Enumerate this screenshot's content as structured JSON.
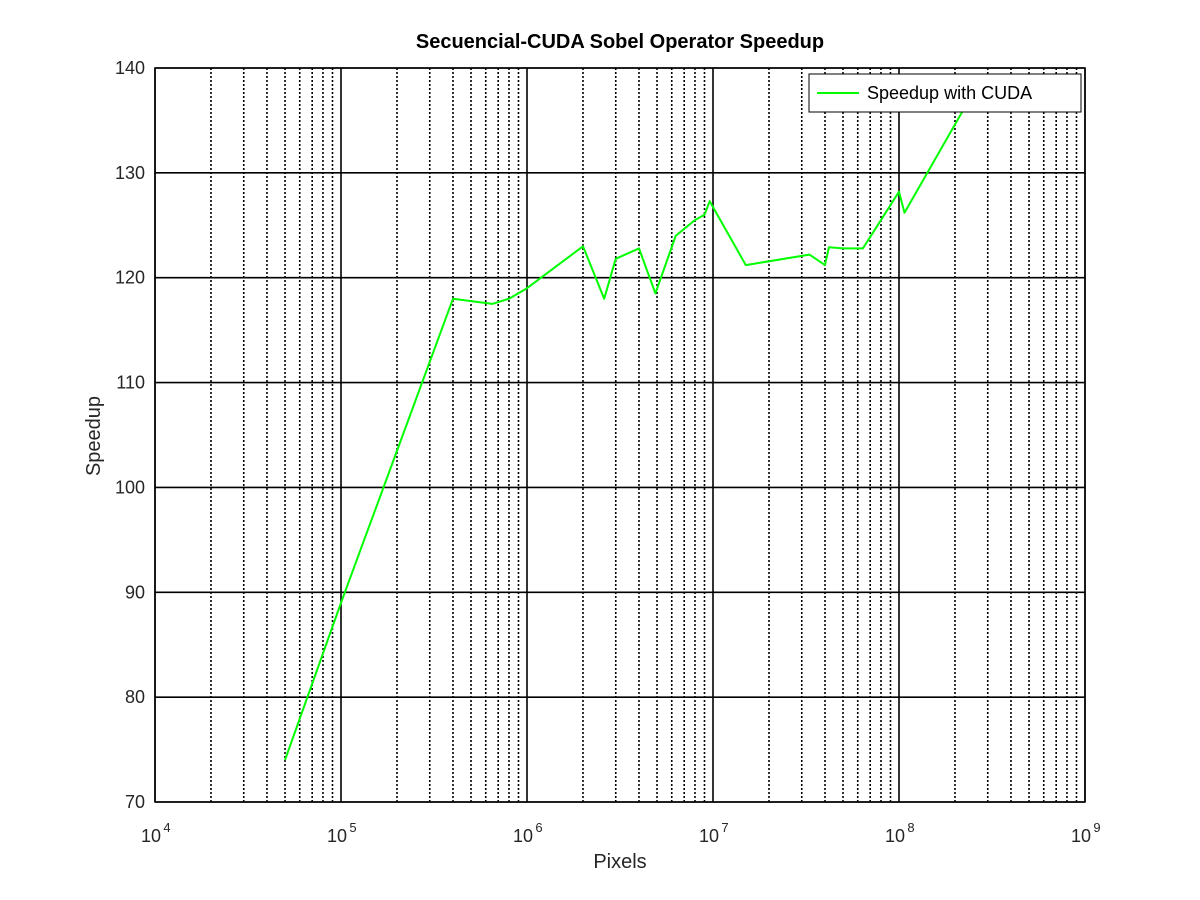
{
  "chart_data": {
    "type": "line",
    "title": "Secuencial-CUDA Sobel Operator Speedup",
    "xlabel": "Pixels",
    "ylabel": "Speedup",
    "xscale": "log",
    "xlim": [
      10000,
      1000000000
    ],
    "ylim": [
      70,
      140
    ],
    "xticks": [
      {
        "base": "10",
        "exp": "4",
        "value": 10000
      },
      {
        "base": "10",
        "exp": "5",
        "value": 100000
      },
      {
        "base": "10",
        "exp": "6",
        "value": 1000000
      },
      {
        "base": "10",
        "exp": "7",
        "value": 10000000
      },
      {
        "base": "10",
        "exp": "8",
        "value": 100000000
      },
      {
        "base": "10",
        "exp": "9",
        "value": 1000000000
      }
    ],
    "yticks": [
      70,
      80,
      90,
      100,
      110,
      120,
      130,
      140
    ],
    "grid": true,
    "legend": {
      "position": "top-right",
      "entries": [
        "Speedup with CUDA"
      ]
    },
    "series": [
      {
        "name": "Speedup with CUDA",
        "color": "#00ff00",
        "x": [
          50000,
          100000,
          400000,
          650000,
          800000,
          1000000,
          2000000,
          2600000,
          3000000,
          4000000,
          4900000,
          6300000,
          8000000,
          9000000,
          9600000,
          15000000,
          33000000,
          40000000,
          42000000,
          50000000,
          64000000,
          100000000,
          107000000,
          230000000
        ],
        "y": [
          74,
          89,
          118,
          117.5,
          118,
          119,
          123,
          118,
          121.8,
          122.8,
          118.5,
          124,
          125.5,
          126,
          127.3,
          121.2,
          122.2,
          121.2,
          122.9,
          122.8,
          122.8,
          128.2,
          126.2,
          136.5
        ]
      }
    ]
  }
}
